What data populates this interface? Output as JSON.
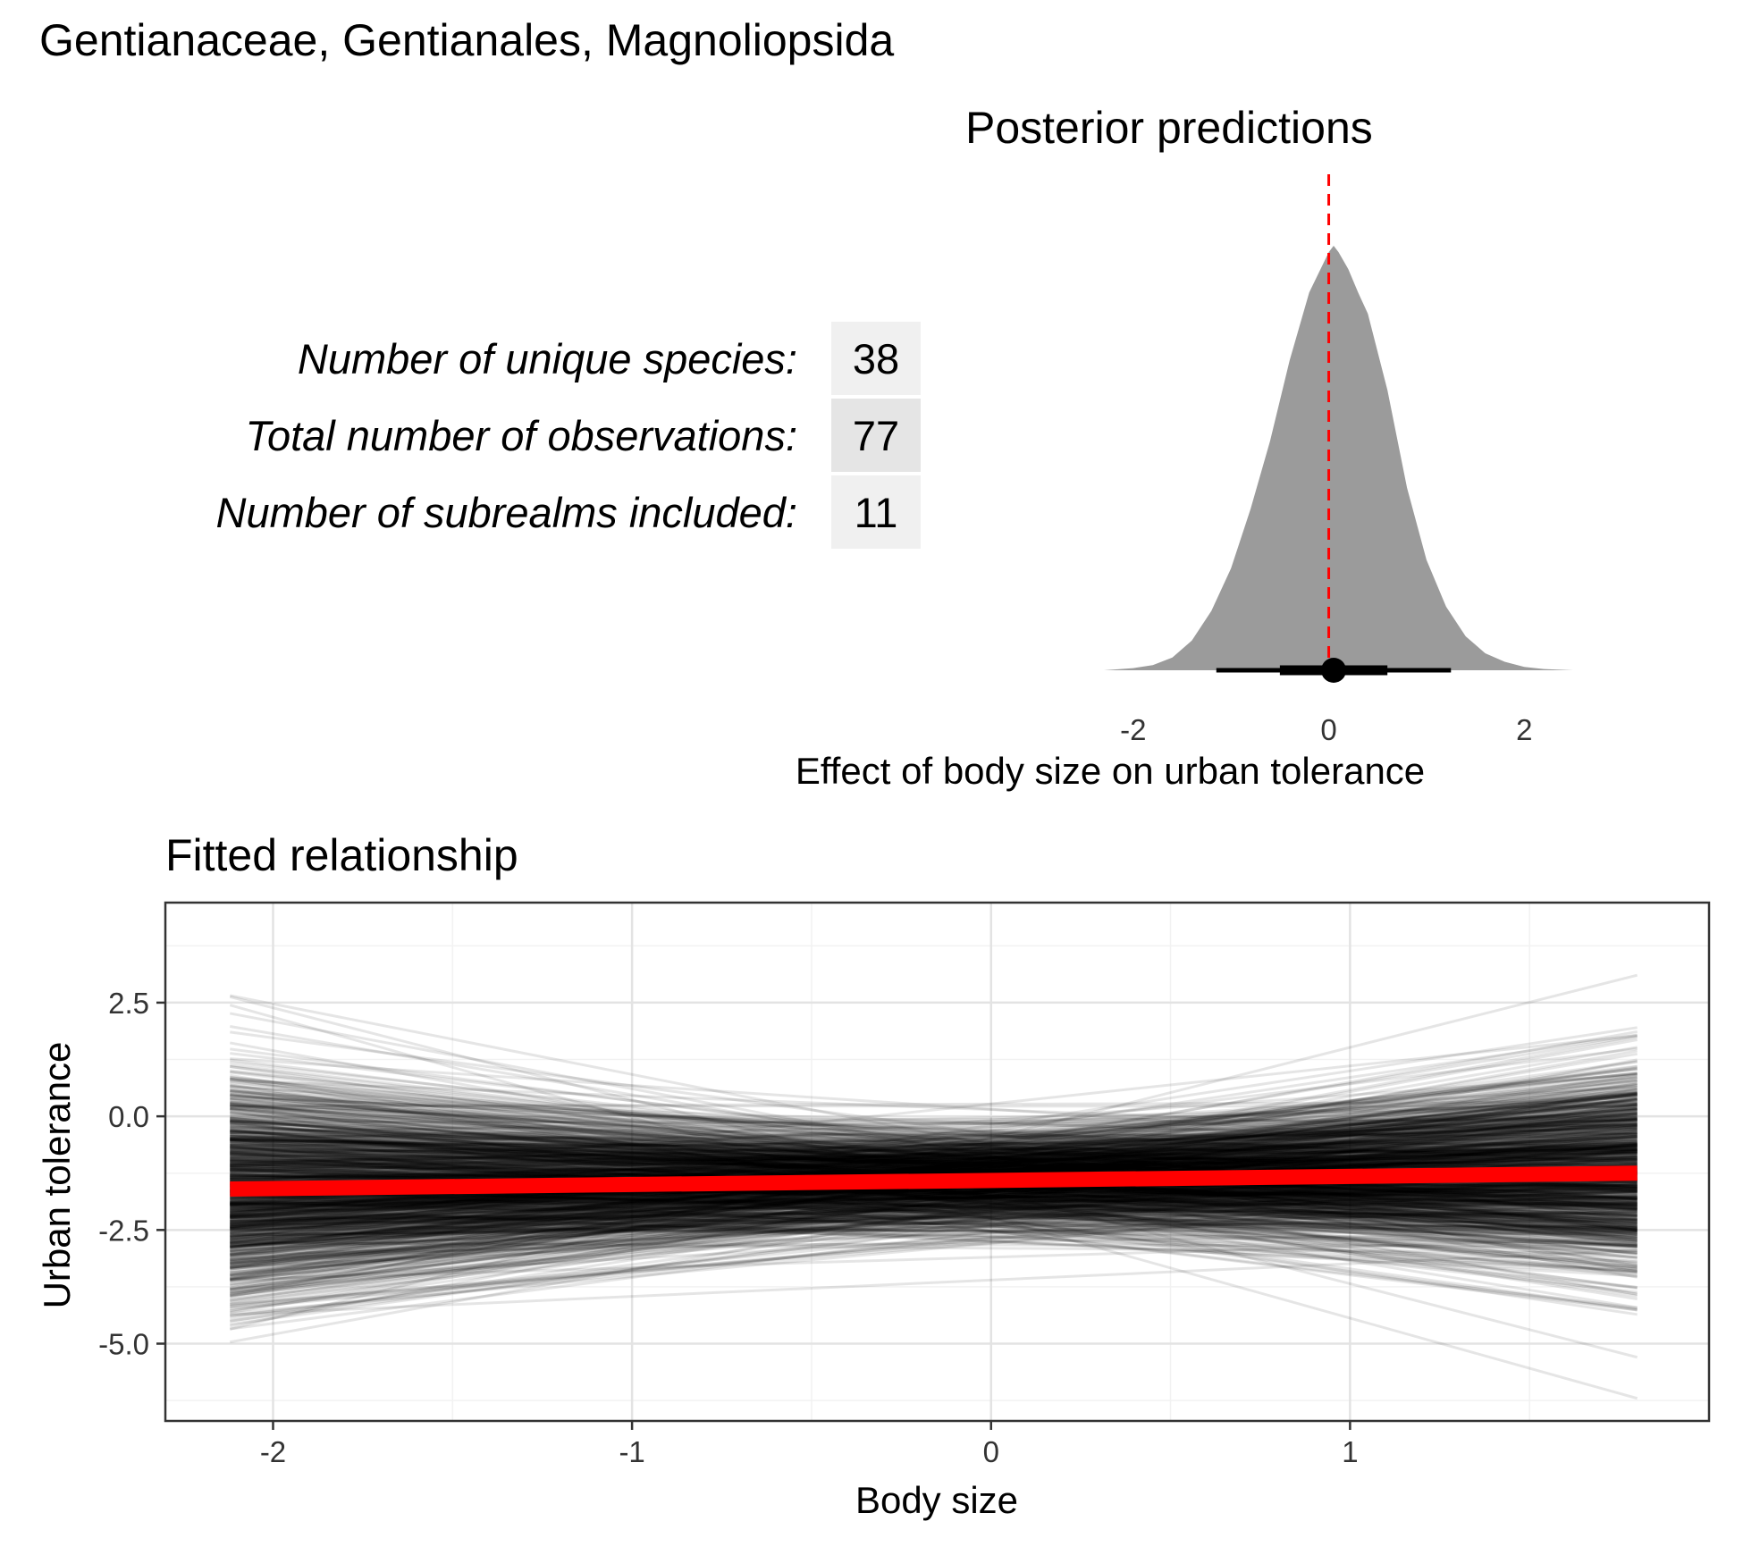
{
  "figure": {
    "title": "Gentianaceae, Gentianales, Magnoliopsida"
  },
  "stats": [
    {
      "label": "Number of unique species:",
      "value": "38"
    },
    {
      "label": "Total number of observations:",
      "value": "77"
    },
    {
      "label": "Number of subrealms included:",
      "value": "11"
    }
  ],
  "chart_data": [
    {
      "type": "area",
      "title": "Posterior predictions",
      "xlabel": "Effect of body size on urban tolerance",
      "ylabel": "",
      "xlim": [
        -2.3,
        2.5
      ],
      "x_ticks": [
        "-2",
        "0",
        "2"
      ],
      "x_tick_values": [
        -2,
        0,
        2
      ],
      "density": {
        "x": [
          -2.3,
          -2.0,
          -1.8,
          -1.6,
          -1.4,
          -1.2,
          -1.0,
          -0.8,
          -0.6,
          -0.4,
          -0.2,
          0.0,
          0.05,
          0.1,
          0.2,
          0.3,
          0.4,
          0.6,
          0.8,
          1.0,
          1.2,
          1.4,
          1.6,
          1.8,
          2.0,
          2.2,
          2.5
        ],
        "y": [
          0.0,
          0.005,
          0.012,
          0.03,
          0.07,
          0.14,
          0.24,
          0.38,
          0.54,
          0.73,
          0.89,
          0.985,
          1.0,
          0.985,
          0.945,
          0.89,
          0.84,
          0.66,
          0.43,
          0.26,
          0.15,
          0.08,
          0.04,
          0.02,
          0.008,
          0.003,
          0.0
        ]
      },
      "density_fill": "#9b9b9b",
      "reference_line": {
        "x": 0,
        "color": "#ff0000",
        "style": "dashed"
      },
      "point_interval": {
        "point": 0.05,
        "inner_interval": [
          -0.5,
          0.6
        ],
        "outer_interval": [
          -1.15,
          1.25
        ]
      },
      "grid": false
    },
    {
      "type": "line",
      "title": "Fitted relationship",
      "xlabel": "Body size",
      "ylabel": "Urban tolerance",
      "xlim": [
        -2.3,
        2.0
      ],
      "ylim": [
        -6.7,
        4.7
      ],
      "x_ticks": [
        "-2",
        "-1",
        "0",
        "1"
      ],
      "x_tick_values": [
        -2,
        -1,
        0,
        1
      ],
      "y_ticks": [
        "2.5",
        "0.0",
        "-2.5",
        "-5.0"
      ],
      "y_tick_values": [
        2.5,
        0.0,
        -2.5,
        -5.0
      ],
      "x_range": [
        -2.12,
        1.8
      ],
      "posterior_draws": {
        "count": 1000,
        "color": "#000000",
        "intercept_mean": -1.38,
        "intercept_sd": 0.55,
        "slope_mean": 0.1,
        "slope_sd": 0.55
      },
      "mean_line": {
        "x": [
          -2.12,
          1.8
        ],
        "y": [
          -1.6,
          -1.25
        ],
        "color": "#ff0000"
      },
      "grid": true
    }
  ]
}
